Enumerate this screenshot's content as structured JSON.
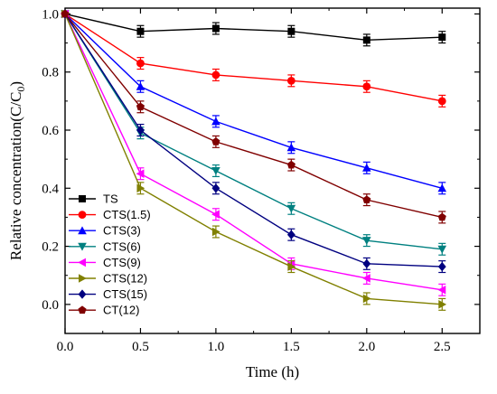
{
  "chart_data": {
    "type": "line",
    "xlabel": "Time (h)",
    "ylabel": "Relative concentration(C/C",
    "ylabel_sub": "0",
    "ylabel_close": ")",
    "xlim": [
      0.0,
      2.75
    ],
    "ylim": [
      -0.1,
      1.02
    ],
    "x_ticks": [
      0.0,
      0.5,
      1.0,
      1.5,
      2.0,
      2.5
    ],
    "x_tick_labels": [
      "0.0",
      "0.5",
      "1.0",
      "1.5",
      "2.0",
      "2.5"
    ],
    "y_ticks": [
      0.0,
      0.2,
      0.4,
      0.6,
      0.8,
      1.0
    ],
    "y_tick_labels": [
      "0.0",
      "0.2",
      "0.4",
      "0.6",
      "0.8",
      "1.0"
    ],
    "grid": false,
    "legend_position": "bottom-left",
    "x": [
      0.0,
      0.5,
      1.0,
      1.5,
      2.0,
      2.5
    ],
    "series": [
      {
        "name": "TS",
        "color": "#000000",
        "marker": "square",
        "values": [
          1.0,
          0.94,
          0.95,
          0.94,
          0.91,
          0.92
        ],
        "errors": [
          0.02,
          0.02,
          0.02,
          0.02,
          0.02,
          0.02
        ]
      },
      {
        "name": "CTS(1.5)",
        "color": "#ff0000",
        "marker": "circle",
        "values": [
          1.0,
          0.83,
          0.79,
          0.77,
          0.75,
          0.7
        ],
        "errors": [
          0.02,
          0.02,
          0.02,
          0.02,
          0.02,
          0.02
        ]
      },
      {
        "name": "CTS(3)",
        "color": "#0000ff",
        "marker": "triangle-up",
        "values": [
          1.0,
          0.75,
          0.63,
          0.54,
          0.47,
          0.4
        ],
        "errors": [
          0.02,
          0.02,
          0.02,
          0.02,
          0.02,
          0.02
        ]
      },
      {
        "name": "CTS(6)",
        "color": "#008080",
        "marker": "triangle-down",
        "values": [
          1.0,
          0.59,
          0.46,
          0.33,
          0.22,
          0.19
        ],
        "errors": [
          0.02,
          0.02,
          0.02,
          0.02,
          0.02,
          0.02
        ]
      },
      {
        "name": "CTS(9)",
        "color": "#ff00ff",
        "marker": "triangle-left",
        "values": [
          1.0,
          0.45,
          0.31,
          0.14,
          0.09,
          0.05
        ],
        "errors": [
          0.02,
          0.02,
          0.02,
          0.02,
          0.02,
          0.02
        ]
      },
      {
        "name": "CTS(12)",
        "color": "#808000",
        "marker": "triangle-right",
        "values": [
          1.0,
          0.4,
          0.25,
          0.13,
          0.02,
          0.0
        ],
        "errors": [
          0.02,
          0.02,
          0.02,
          0.02,
          0.02,
          0.02
        ]
      },
      {
        "name": "CTS(15)",
        "color": "#000080",
        "marker": "diamond",
        "values": [
          1.0,
          0.6,
          0.4,
          0.24,
          0.14,
          0.13
        ],
        "errors": [
          0.02,
          0.02,
          0.02,
          0.02,
          0.02,
          0.02
        ]
      },
      {
        "name": "CT(12)",
        "color": "#800000",
        "marker": "pentagon",
        "values": [
          1.0,
          0.68,
          0.56,
          0.48,
          0.36,
          0.3
        ],
        "errors": [
          0.02,
          0.02,
          0.02,
          0.02,
          0.02,
          0.02
        ]
      }
    ]
  }
}
